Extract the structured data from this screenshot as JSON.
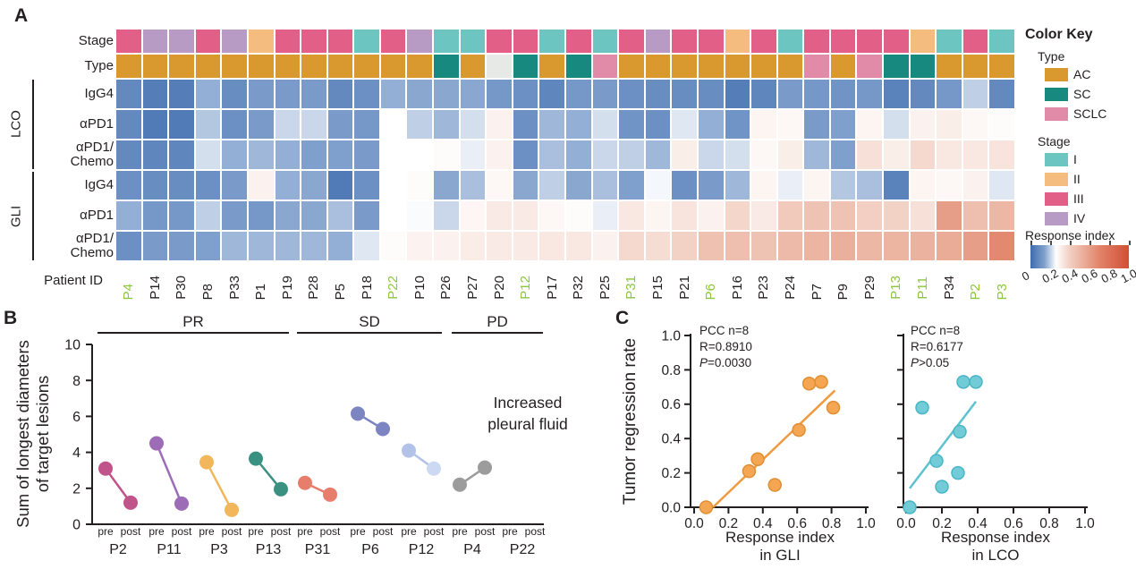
{
  "panels": {
    "a_label": "A",
    "b_label": "B",
    "c_label": "C"
  },
  "heatmap_ui": {
    "stage_label": "Stage",
    "type_label": "Type",
    "patient_id_label": "Patient ID",
    "groups": [
      {
        "name": "LCO",
        "treatments": [
          "IgG4",
          "αPD1",
          "αPD1/Chemo"
        ]
      },
      {
        "name": "GLI",
        "treatments": [
          "IgG4",
          "αPD1",
          "αPD1/Chemo"
        ]
      }
    ]
  },
  "color_key": {
    "title": "Color Key",
    "type_title": "Type",
    "type_items": [
      {
        "label": "AC",
        "color": "#d9992e"
      },
      {
        "label": "SC",
        "color": "#17897f"
      },
      {
        "label": "SCLC",
        "color": "#e28ba9"
      }
    ],
    "stage_title": "Stage",
    "stage_items": [
      {
        "label": "I",
        "color": "#6dc5c2"
      },
      {
        "label": "II",
        "color": "#f4bc7e"
      },
      {
        "label": "III",
        "color": "#e25f88"
      },
      {
        "label": "IV",
        "color": "#b79bc4"
      }
    ],
    "response_title": "Response index",
    "response_ticks": [
      "0",
      "0.2",
      "0.4",
      "0.6",
      "0.8",
      "1.0"
    ]
  },
  "colors": {
    "stage": {
      "I": "#6dc5c2",
      "II": "#f4bc7e",
      "III": "#e25f88",
      "IV": "#b79bc4"
    },
    "type": {
      "AC": "#d9992e",
      "SC": "#17897f",
      "SCLC": "#e28ba9"
    },
    "type_na": "#e7e9e7",
    "green_id": "#8dc63f",
    "ink": "#231f20",
    "response_stops": [
      [
        0,
        "#3e6cae"
      ],
      [
        0.14,
        "#7f9fcc"
      ],
      [
        0.26,
        "#ffffff"
      ],
      [
        0.4,
        "#f2cfc2"
      ],
      [
        0.55,
        "#eaab97"
      ],
      [
        0.7,
        "#e2846a"
      ],
      [
        1.0,
        "#d14f36"
      ]
    ]
  },
  "chart_data": [
    {
      "type": "heatmap",
      "panel": "A",
      "rows": [
        "LCO IgG4",
        "LCO αPD1",
        "LCO αPD1/Chemo",
        "GLI IgG4",
        "GLI αPD1",
        "GLI αPD1/Chemo"
      ],
      "patients": [
        "P4",
        "P14",
        "P30",
        "P8",
        "P33",
        "P1",
        "P19",
        "P28",
        "P5",
        "P18",
        "P22",
        "P10",
        "P26",
        "P27",
        "P20",
        "P12",
        "P17",
        "P32",
        "P25",
        "P31",
        "P15",
        "P21",
        "P6",
        "P16",
        "P23",
        "P24",
        "P7",
        "P9",
        "P29",
        "P13",
        "P11",
        "P34",
        "P2",
        "P3"
      ],
      "green_patients": [
        "P4",
        "P22",
        "P12",
        "P31",
        "P6",
        "P13",
        "P11",
        "P2",
        "P3"
      ],
      "stage": [
        "III",
        "IV",
        "IV",
        "III",
        "IV",
        "II",
        "III",
        "III",
        "III",
        "I",
        "III",
        "IV",
        "I",
        "I",
        "III",
        "III",
        "I",
        "III",
        "I",
        "III",
        "IV",
        "III",
        "III",
        "II",
        "III",
        "I",
        "III",
        "III",
        "III",
        "III",
        "II",
        "I",
        "III",
        "I"
      ],
      "type_row": [
        "AC",
        "AC",
        "AC",
        "AC",
        "AC",
        "AC",
        "AC",
        "AC",
        "AC",
        "AC",
        "AC",
        "AC",
        "SC",
        "AC",
        "NA",
        "SC",
        "AC",
        "SC",
        "SCLC",
        "AC",
        "AC",
        "AC",
        "AC",
        "AC",
        "AC",
        "AC",
        "SCLC",
        "AC",
        "SCLC",
        "SC",
        "SC",
        "AC",
        "AC",
        "AC"
      ],
      "value_scale": [
        0,
        1
      ],
      "values": [
        [
          0.08,
          0.05,
          0.05,
          0.16,
          0.09,
          0.13,
          0.13,
          0.13,
          0.08,
          0.1,
          0.16,
          0.15,
          0.15,
          0.15,
          0.12,
          0.1,
          0.07,
          0.12,
          0.13,
          0.1,
          0.09,
          0.09,
          0.09,
          0.05,
          0.07,
          0.13,
          0.12,
          0.11,
          0.12,
          0.06,
          0.08,
          0.12,
          0.2,
          0.08
        ],
        [
          0.08,
          0.04,
          0.04,
          0.19,
          0.1,
          0.13,
          0.21,
          0.21,
          0.13,
          0.12,
          0.26,
          0.2,
          0.17,
          0.22,
          0.3,
          0.1,
          0.17,
          0.16,
          0.22,
          0.11,
          0.1,
          0.23,
          0.16,
          0.11,
          0.29,
          0.28,
          0.13,
          0.14,
          0.29,
          0.22,
          0.3,
          0.31,
          0.28,
          0.27
        ],
        [
          0.08,
          0.07,
          0.07,
          0.22,
          0.16,
          0.17,
          0.16,
          0.14,
          0.14,
          0.13,
          0.26,
          0.26,
          0.27,
          0.24,
          0.3,
          0.1,
          0.18,
          0.16,
          0.21,
          0.2,
          0.17,
          0.31,
          0.21,
          0.22,
          0.28,
          0.31,
          0.17,
          0.14,
          0.35,
          0.31,
          0.37,
          0.33,
          0.33,
          0.34
        ],
        [
          0.1,
          0.09,
          0.09,
          0.1,
          0.13,
          0.3,
          0.16,
          0.15,
          0.04,
          0.1,
          0.26,
          0.27,
          0.15,
          0.18,
          0.28,
          0.15,
          0.2,
          0.15,
          0.18,
          0.14,
          0.25,
          0.1,
          0.13,
          0.17,
          0.29,
          0.24,
          0.29,
          0.19,
          0.18,
          0.06,
          0.29,
          0.28,
          0.3,
          0.23
        ],
        [
          0.16,
          0.12,
          0.12,
          0.2,
          0.13,
          0.12,
          0.15,
          0.15,
          0.18,
          0.13,
          0.26,
          0.255,
          0.21,
          0.285,
          0.32,
          0.32,
          0.28,
          0.27,
          0.24,
          0.33,
          0.29,
          0.34,
          0.3,
          0.38,
          0.32,
          0.42,
          0.45,
          0.45,
          0.4,
          0.39,
          0.35,
          0.6,
          0.47,
          0.5
        ],
        [
          0.1,
          0.13,
          0.13,
          0.14,
          0.17,
          0.17,
          0.17,
          0.17,
          0.16,
          0.23,
          0.27,
          0.295,
          0.3,
          0.315,
          0.32,
          0.32,
          0.33,
          0.33,
          0.3,
          0.37,
          0.36,
          0.39,
          0.46,
          0.47,
          0.45,
          0.49,
          0.51,
          0.53,
          0.5,
          0.51,
          0.52,
          0.55,
          0.6,
          0.68
        ]
      ]
    },
    {
      "type": "dumbbell",
      "panel": "B",
      "ylabel_lines": [
        "Sum of longest diameters",
        "of target lesions"
      ],
      "ylim": [
        0,
        10
      ],
      "yticks": [
        0,
        2,
        4,
        6,
        8,
        10
      ],
      "x_sublabels": [
        "pre",
        "post"
      ],
      "response_groups": [
        {
          "label": "PR",
          "patients": [
            "P2",
            "P11",
            "P3",
            "P13"
          ]
        },
        {
          "label": "SD",
          "patients": [
            "P31",
            "P6",
            "P12"
          ]
        },
        {
          "label": "PD",
          "patients": [
            "P4",
            "P22"
          ]
        }
      ],
      "series": [
        {
          "patient": "P2",
          "pre": 3.1,
          "post": 1.2,
          "color": "#c2548c"
        },
        {
          "patient": "P11",
          "pre": 4.5,
          "post": 1.15,
          "color": "#9c6db6"
        },
        {
          "patient": "P3",
          "pre": 3.45,
          "post": 0.8,
          "color": "#f2b65b"
        },
        {
          "patient": "P13",
          "pre": 3.65,
          "post": 1.95,
          "color": "#3b9181"
        },
        {
          "patient": "P31",
          "pre": 2.3,
          "post": 1.65,
          "color": "#e77e6c"
        },
        {
          "patient": "P6",
          "pre": 6.15,
          "post": 5.3,
          "color": "#7c84c1"
        },
        {
          "patient": "P12",
          "pre": 4.1,
          "post": 3.1,
          "color": "#b3c2e8",
          "post_color": "#cdd9f3"
        },
        {
          "patient": "P4",
          "pre": 2.2,
          "post": 3.15,
          "color": "#9c9c9c"
        },
        {
          "patient": "P22",
          "pre": null,
          "post": null,
          "color": null
        }
      ],
      "annotation_lines": [
        "Increased",
        "pleural fluid"
      ]
    },
    {
      "type": "scatter",
      "panel": "C",
      "ylabel": "Tumor regression rate",
      "plots": [
        {
          "xlabel_lines": [
            "Response index",
            "in GLI"
          ],
          "stats": [
            "PCC n=8",
            "R=0.8910",
            "P=0.0030"
          ],
          "color_fill": "#f5a652",
          "color_stroke": "#e08f33",
          "line_color": "#f09a3f",
          "xlim": [
            0,
            1
          ],
          "ylim": [
            0,
            1
          ],
          "xticks": [
            "0.0",
            "0.2",
            "0.4",
            "0.6",
            "0.8",
            "1.0"
          ],
          "yticks": [
            "0.0",
            "0.2",
            "0.4",
            "0.6",
            "0.8",
            "1.0"
          ],
          "show_ytick_labels": true,
          "points": [
            [
              0.07,
              0.0
            ],
            [
              0.32,
              0.21
            ],
            [
              0.37,
              0.28
            ],
            [
              0.47,
              0.13
            ],
            [
              0.61,
              0.45
            ],
            [
              0.67,
              0.72
            ],
            [
              0.74,
              0.73
            ],
            [
              0.81,
              0.58
            ]
          ],
          "fit_line": [
            [
              0.11,
              0.0
            ],
            [
              0.82,
              0.68
            ]
          ]
        },
        {
          "xlabel_lines": [
            "Response index",
            "in LCO"
          ],
          "stats": [
            "PCC n=8",
            "R=0.6177",
            "P>0.05"
          ],
          "color_fill": "#72ccd8",
          "color_stroke": "#4ab5c4",
          "line_color": "#5cc3cf",
          "xlim": [
            0,
            1
          ],
          "ylim": [
            0,
            1
          ],
          "xticks": [
            "0.0",
            "0.2",
            "0.4",
            "0.6",
            "0.8",
            "1.0"
          ],
          "yticks": [
            "0.0",
            "0.2",
            "0.4",
            "0.6",
            "0.8",
            "1.0"
          ],
          "show_ytick_labels": false,
          "points": [
            [
              0.02,
              0.0
            ],
            [
              0.09,
              0.58
            ],
            [
              0.17,
              0.27
            ],
            [
              0.2,
              0.12
            ],
            [
              0.29,
              0.2
            ],
            [
              0.3,
              0.44
            ],
            [
              0.32,
              0.73
            ],
            [
              0.39,
              0.73
            ]
          ],
          "fit_line": [
            [
              0.02,
              0.11
            ],
            [
              0.39,
              0.615
            ]
          ]
        }
      ]
    }
  ]
}
